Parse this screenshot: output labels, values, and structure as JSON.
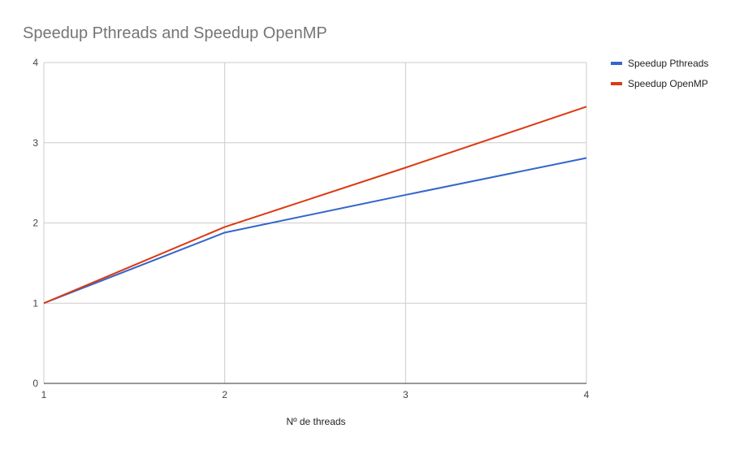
{
  "chart_data": {
    "type": "line",
    "title": "Speedup Pthreads and Speedup OpenMP",
    "xlabel": "Nº de threads",
    "ylabel": "",
    "x": [
      1,
      2,
      3,
      4
    ],
    "x_tick_labels": [
      "1",
      "2",
      "3",
      "4"
    ],
    "y_tick_labels": [
      "0",
      "1",
      "2",
      "3",
      "4"
    ],
    "xlim": [
      1,
      4
    ],
    "ylim": [
      0,
      4
    ],
    "grid": true,
    "legend_position": "right",
    "series": [
      {
        "name": "Speedup Pthreads",
        "color": "#3366cc",
        "values": [
          1.0,
          1.88,
          2.35,
          2.81
        ]
      },
      {
        "name": "Speedup OpenMP",
        "color": "#dc3912",
        "values": [
          1.0,
          1.95,
          2.69,
          3.45
        ]
      }
    ]
  }
}
